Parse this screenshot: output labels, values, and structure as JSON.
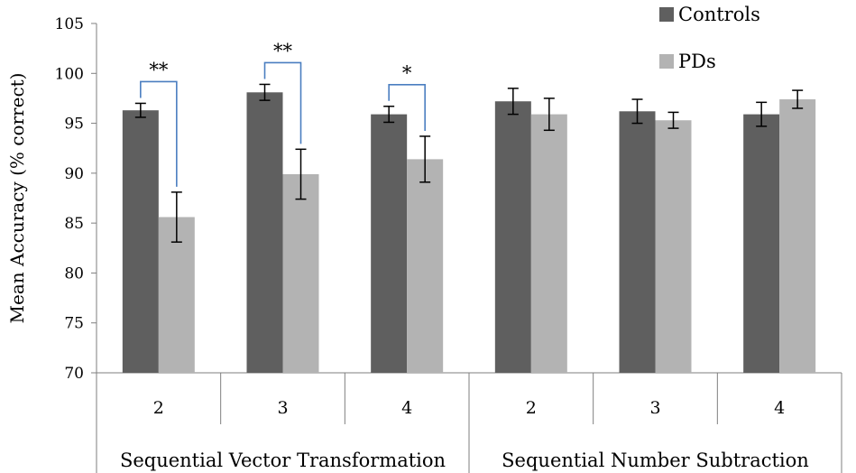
{
  "chart_data": {
    "type": "bar",
    "title": "",
    "xlabel": "",
    "ylabel": "Mean Accuracy (% correct)",
    "ylim": [
      70,
      105
    ],
    "yticks": [
      "70",
      "75",
      "80",
      "85",
      "90",
      "95",
      "100",
      "105"
    ],
    "categories": [
      "2",
      "3",
      "4",
      "2",
      "3",
      "4"
    ],
    "groups": [
      {
        "label": "Sequential Vector Transformation",
        "span": [
          0,
          2
        ]
      },
      {
        "label": "Sequential Number Subtraction",
        "span": [
          3,
          5
        ]
      }
    ],
    "series": [
      {
        "name": "Controls",
        "color": "#5f5f5f",
        "values": [
          96.3,
          98.1,
          95.9,
          97.2,
          96.2,
          95.9
        ],
        "errors": [
          0.7,
          0.8,
          0.8,
          1.3,
          1.2,
          1.2
        ]
      },
      {
        "name": "PDs",
        "color": "#b3b3b3",
        "values": [
          85.6,
          89.9,
          91.4,
          95.9,
          95.3,
          97.4
        ],
        "errors": [
          2.5,
          2.5,
          2.3,
          1.6,
          0.8,
          0.9
        ]
      }
    ],
    "significance": [
      {
        "category_index": 0,
        "label": "**",
        "bracket_color": "#4a7ec0"
      },
      {
        "category_index": 1,
        "label": "**",
        "bracket_color": "#4a7ec0"
      },
      {
        "category_index": 2,
        "label": "*",
        "bracket_color": "#4a7ec0"
      }
    ],
    "legend": {
      "position": "top-right"
    },
    "grid": false
  }
}
